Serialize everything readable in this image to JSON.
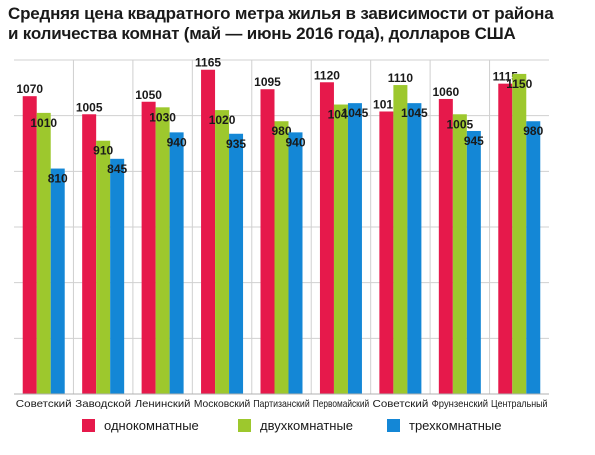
{
  "title_line1": "Средняя цена квадратного метра жилья в зависимости от района",
  "title_line2": "и количества комнат (май — июнь 2016 года), долларов США",
  "chart_data": {
    "type": "bar",
    "title": "Средняя цена квадратного метра жилья в зависимости от района и количества комнат (май — июнь 2016 года), долларов США",
    "categories": [
      "Советский",
      "Заводской",
      "Ленинский",
      "Московский",
      "Партизанский",
      "Первомайский",
      "Советский",
      "Фрунзенский",
      "Центральный"
    ],
    "series": [
      {
        "name": "однокомнатные",
        "color": "#e6194b",
        "values": [
          1070,
          1005,
          1050,
          1165,
          1095,
          1120,
          1015,
          1060,
          1115
        ]
      },
      {
        "name": "двухкомнатные",
        "color": "#9dc82d",
        "values": [
          1010,
          910,
          1030,
          1020,
          980,
          1040,
          1110,
          1005,
          1150
        ]
      },
      {
        "name": "трехкомнатные",
        "color": "#1487d6",
        "values": [
          810,
          845,
          940,
          935,
          940,
          1045,
          1045,
          945,
          980
        ]
      }
    ],
    "ylim": [
      0,
      1200
    ],
    "grid": true,
    "legend_position": "bottom"
  }
}
